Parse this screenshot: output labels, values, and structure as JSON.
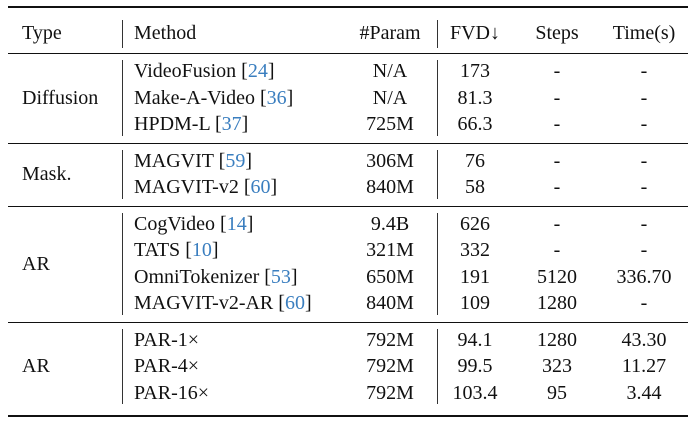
{
  "headers": {
    "type": "Type",
    "method": "Method",
    "param": "#Param",
    "fvd": "FVD↓",
    "steps": "Steps",
    "time": "Time(s)"
  },
  "groups": [
    {
      "type": "Diffusion",
      "rows": [
        {
          "method": "VideoFusion",
          "cite": "24",
          "param": "N/A",
          "fvd": "173",
          "steps": "-",
          "time": "-"
        },
        {
          "method": "Make-A-Video",
          "cite": "36",
          "param": "N/A",
          "fvd": "81.3",
          "steps": "-",
          "time": "-"
        },
        {
          "method": "HPDM-L",
          "cite": "37",
          "param": "725M",
          "fvd": "66.3",
          "steps": "-",
          "time": "-"
        }
      ]
    },
    {
      "type": "Mask.",
      "rows": [
        {
          "method": "MAGVIT",
          "cite": "59",
          "param": "306M",
          "fvd": "76",
          "steps": "-",
          "time": "-"
        },
        {
          "method": "MAGVIT-v2",
          "cite": "60",
          "param": "840M",
          "fvd": "58",
          "steps": "-",
          "time": "-"
        }
      ]
    },
    {
      "type": "AR",
      "rows": [
        {
          "method": "CogVideo",
          "cite": "14",
          "param": "9.4B",
          "fvd": "626",
          "steps": "-",
          "time": "-"
        },
        {
          "method": "TATS",
          "cite": "10",
          "param": "321M",
          "fvd": "332",
          "steps": "-",
          "time": "-"
        },
        {
          "method": "OmniTokenizer",
          "cite": "53",
          "param": "650M",
          "fvd": "191",
          "steps": "5120",
          "time": "336.70"
        },
        {
          "method": "MAGVIT-v2-AR",
          "cite": "60",
          "param": "840M",
          "fvd": "109",
          "steps": "1280",
          "time": "-"
        }
      ]
    },
    {
      "type": "AR",
      "rows": [
        {
          "method": "PAR-1×",
          "cite": "",
          "param": "792M",
          "fvd": "94.1",
          "steps": "1280",
          "time": "43.30"
        },
        {
          "method": "PAR-4×",
          "cite": "",
          "param": "792M",
          "fvd": "99.5",
          "steps": "323",
          "time": "11.27"
        },
        {
          "method": "PAR-16×",
          "cite": "",
          "param": "792M",
          "fvd": "103.4",
          "steps": "95",
          "time": "3.44"
        }
      ]
    }
  ]
}
